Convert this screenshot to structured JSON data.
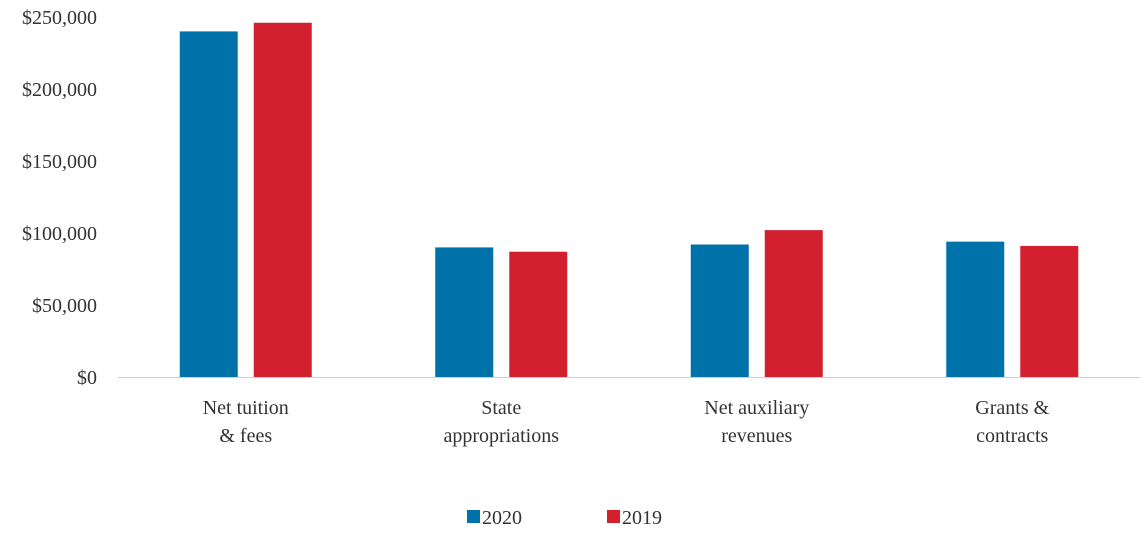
{
  "chart_data": {
    "type": "bar",
    "title": "",
    "xlabel": "",
    "ylabel": "",
    "categories": [
      [
        "Net tuition",
        "& fees"
      ],
      [
        "State",
        "appropriations"
      ],
      [
        "Net auxiliary",
        "revenues"
      ],
      [
        "Grants &",
        "contracts"
      ]
    ],
    "series": [
      {
        "name": "2020",
        "color": "#0072AA",
        "values": [
          240000,
          90000,
          92000,
          94000
        ]
      },
      {
        "name": "2019",
        "color": "#D2202E",
        "values": [
          246000,
          87000,
          102000,
          91000
        ]
      }
    ],
    "ylim": [
      0,
      250000
    ],
    "yticks": [
      0,
      50000,
      100000,
      150000,
      200000,
      250000
    ],
    "ytick_labels": [
      "$0",
      "$50,000",
      "$100,000",
      "$150,000",
      "$200,000",
      "$250,000"
    ],
    "grid": false,
    "legend_position": "bottom"
  }
}
